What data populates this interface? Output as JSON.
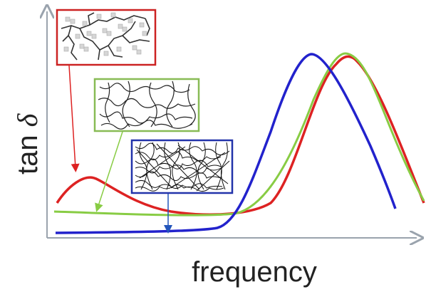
{
  "chart_data": {
    "type": "line",
    "xlabel": "frequency",
    "ylabel_main": "tan ",
    "ylabel_symbol": "δ",
    "series_colors": {
      "red": "#dd2222",
      "green": "#88cc44",
      "blue": "#2222cc"
    },
    "insets": [
      {
        "kind": "branched-network",
        "border_color": "#cc2222"
      },
      {
        "kind": "loose-network",
        "border_color": "#88bb55"
      },
      {
        "kind": "dense-network",
        "border_color": "#2233aa"
      }
    ]
  }
}
